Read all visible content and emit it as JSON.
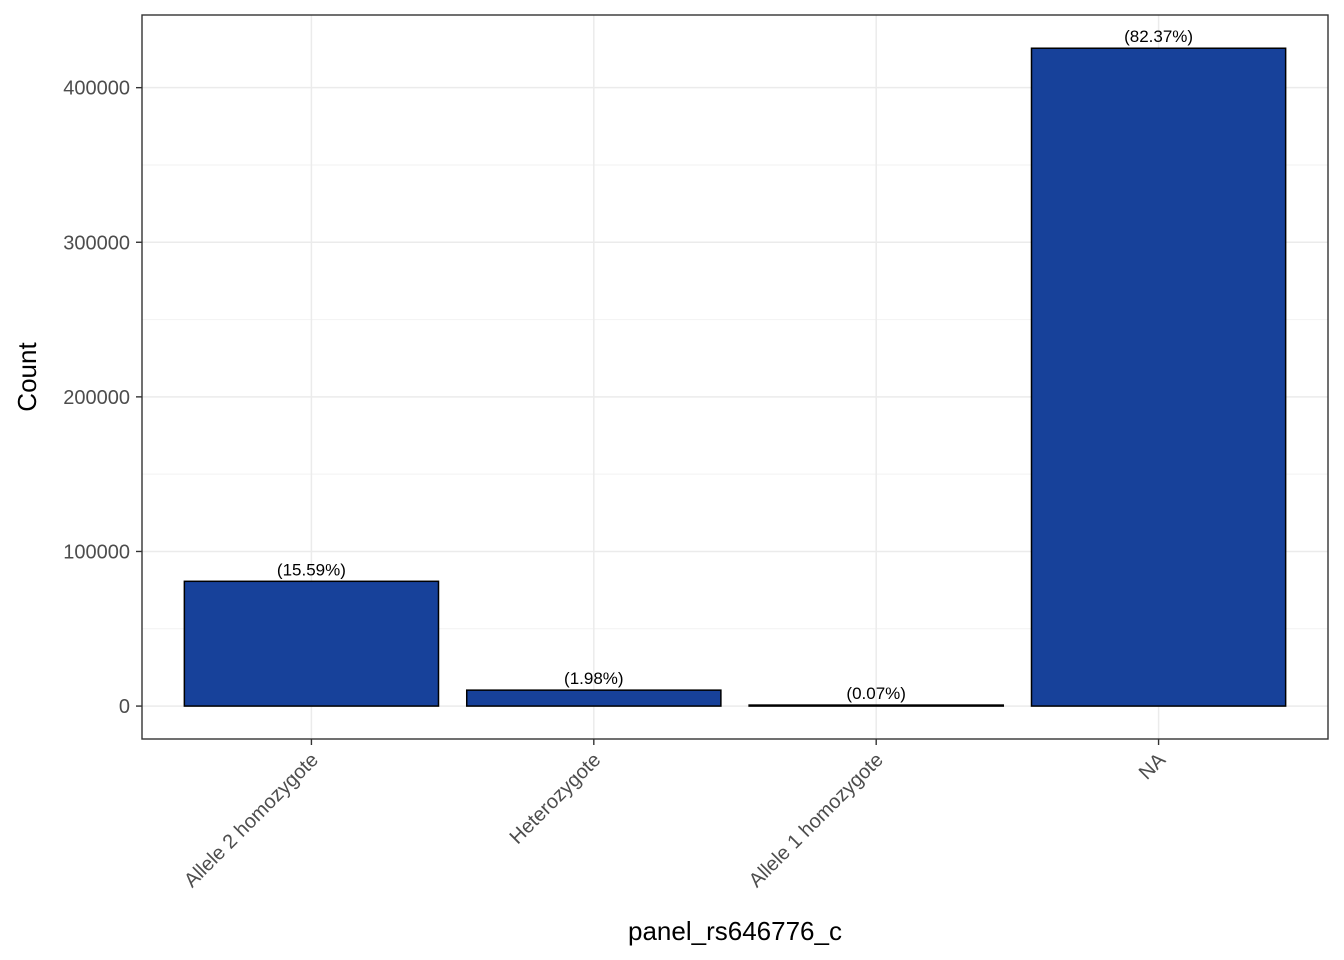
{
  "chart_data": {
    "type": "bar",
    "title": "",
    "xlabel": "panel_rs646776_c",
    "ylabel": "Count",
    "categories": [
      "Allele 2 homozygote",
      "Heterozygote",
      "Allele 1 homozygote",
      "NA"
    ],
    "values": [
      80700,
      10300,
      400,
      425500
    ],
    "data_labels": [
      "(15.59%)",
      "(1.98%)",
      "(0.07%)",
      "(82.37%)"
    ],
    "yticks": [
      0,
      100000,
      200000,
      300000,
      400000
    ],
    "ytick_labels": [
      "0",
      "100000",
      "200000",
      "300000",
      "400000"
    ],
    "ylim": [
      -21300,
      447000
    ],
    "grid": true,
    "legend": "none",
    "colors": {
      "bar_fill": "#17419a",
      "bar_stroke": "#000000",
      "grid_major": "#ebebeb",
      "grid_minor": "#f2f2f2",
      "panel_border": "#333333"
    }
  }
}
